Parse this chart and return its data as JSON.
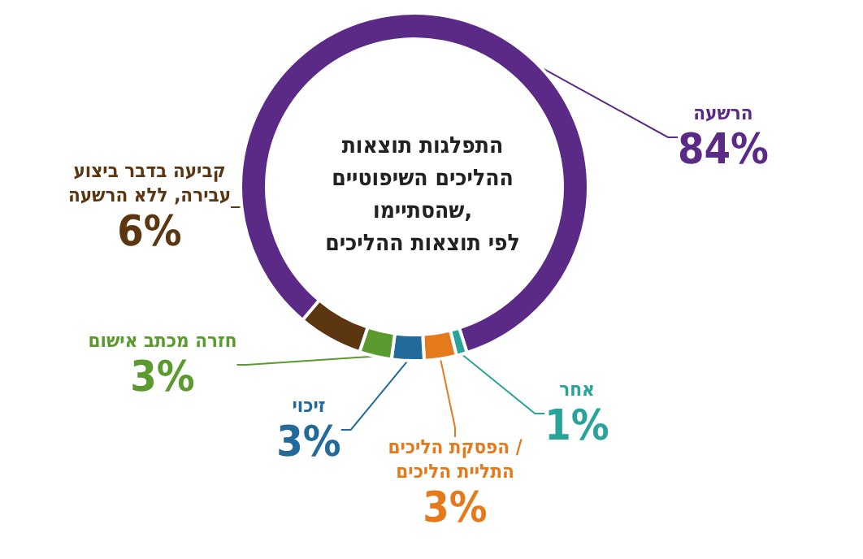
{
  "chart_data": {
    "type": "donut",
    "title": "התפלגות תוצאות\nההליכים השיפוטיים\nשהסתיימו,\nלפי תוצאות ההליכים",
    "categories": [
      "הרשעה",
      "אחר",
      "הפסקת הליכים /\nהתליית הליכים",
      "זיכוי",
      "חזרה מכתב אישום",
      "קביעה בדבר ביצוע\nעבירה, ללא הרשעה"
    ],
    "values": [
      84,
      1,
      3,
      3,
      3,
      6
    ],
    "colors": [
      "#5b2a86",
      "#2aa39a",
      "#e57a1d",
      "#226a9b",
      "#5a9a2e",
      "#5c3511"
    ],
    "value_labels": [
      "84%",
      "1%",
      "3%",
      "3%",
      "3%",
      "6%"
    ],
    "legend": false
  }
}
